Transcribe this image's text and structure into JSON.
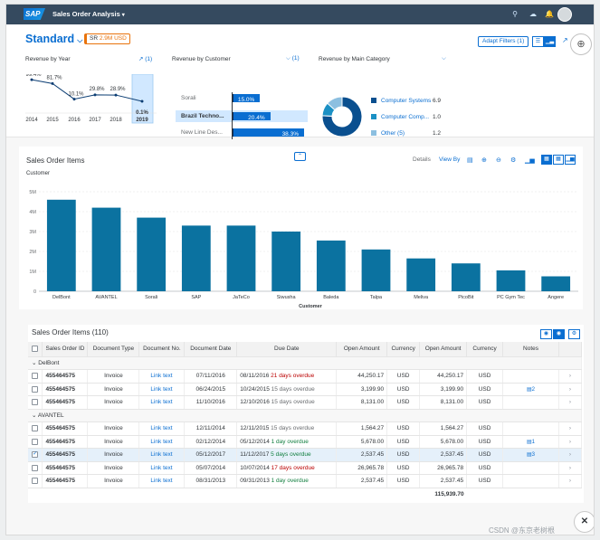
{
  "shell": {
    "logo": "SAP",
    "title": "Sales Order Analysis",
    "caret": "▾",
    "icons": [
      "search-icon",
      "bulb-icon",
      "bell-icon",
      "grid-icon"
    ]
  },
  "header": {
    "variant": "Standard",
    "badge_prefix": "SR",
    "badge_value": "2.9M USD",
    "adapt_filters": "Adapt Filters (1)"
  },
  "revenue_year": {
    "title": "Revenue by Year",
    "count": "(1)",
    "selected_year": "2019",
    "chart_data": {
      "type": "line",
      "categories": [
        "2014",
        "2015",
        "2016",
        "2017",
        "2018",
        "2019"
      ],
      "values": [
        99.4,
        81.7,
        10.1,
        29.8,
        28.9,
        0.1
      ],
      "labels": [
        "99.4%",
        "81.7%",
        "10.1%",
        "29.8%",
        "28.9%",
        "0.1%"
      ]
    }
  },
  "revenue_customer": {
    "title": "Revenue by Customer",
    "count": "(1)",
    "chart_data": {
      "type": "bar",
      "categories": [
        "Sorali",
        "Brazil Techno...",
        "New Line Des..."
      ],
      "values": [
        15.0,
        20.4,
        38.3
      ],
      "labels": [
        "15.0%",
        "20.4%",
        "38.3%"
      ],
      "selected": "Brazil Techno..."
    }
  },
  "revenue_category": {
    "title": "Revenue by Main Category",
    "chart_data": {
      "type": "pie",
      "categories": [
        "Computer Systems",
        "Computer Comp...",
        "Other (5)"
      ],
      "values": [
        6.9,
        1.0,
        1.2
      ],
      "colors": [
        "#0a4f8f",
        "#1b90c4",
        "#8cbfe0"
      ]
    }
  },
  "sales_chart": {
    "title": "Sales Order Items",
    "subtitle": "Customer",
    "details": "Details",
    "view_by": "View By",
    "chart_data": {
      "type": "bar",
      "xlabel": "Customer",
      "ylim": [
        0,
        5
      ],
      "yticks": [
        "0",
        "1M",
        "2M",
        "3M",
        "4M",
        "5M"
      ],
      "categories": [
        "DelBont",
        "AVANTEL",
        "Sorali",
        "SAP",
        "JaTeCo",
        "Siwusha",
        "Baleda",
        "Talpa",
        "Meliva",
        "PicoBit",
        "PC Gym Tec",
        "Angere"
      ],
      "values": [
        4.6,
        4.2,
        3.7,
        3.3,
        3.3,
        3.0,
        2.55,
        2.1,
        1.65,
        1.4,
        1.05,
        0.75
      ]
    }
  },
  "table": {
    "title": "Sales Order Items (110)",
    "columns": [
      "Sales Order ID",
      "Document Type",
      "Document No.",
      "Document Date",
      "Due Date",
      "Open Amount",
      "Currency",
      "Open Amount",
      "Currency",
      "Notes"
    ],
    "groups": [
      {
        "name": "DelBont",
        "rows": [
          {
            "id": "455464575",
            "type": "Invoice",
            "doc": "Link text",
            "date": "07/11/2016",
            "due": "08/11/2016",
            "status": "21 days overdue",
            "tone": "red",
            "amt1": "44,250.17",
            "cur1": "USD",
            "amt2": "44,250.17",
            "cur2": "USD",
            "note": ""
          },
          {
            "id": "455464575",
            "type": "Invoice",
            "doc": "Link text",
            "date": "06/24/2015",
            "due": "10/24/2015",
            "status": "15 days overdue",
            "tone": "gray",
            "amt1": "3,199.90",
            "cur1": "USD",
            "amt2": "3,199.90",
            "cur2": "USD",
            "note": "2"
          },
          {
            "id": "455464575",
            "type": "Invoice",
            "doc": "Link text",
            "date": "11/10/2016",
            "due": "12/10/2016",
            "status": "15 days overdue",
            "tone": "gray",
            "amt1": "8,131.00",
            "cur1": "USD",
            "amt2": "8,131.00",
            "cur2": "USD",
            "note": ""
          }
        ]
      },
      {
        "name": "AVANTEL",
        "rows": [
          {
            "id": "455464575",
            "type": "Invoice",
            "doc": "Link text",
            "date": "12/11/2014",
            "due": "12/11/2015",
            "status": "15 days overdue",
            "tone": "gray",
            "amt1": "1,564.27",
            "cur1": "USD",
            "amt2": "1,564.27",
            "cur2": "USD",
            "note": ""
          },
          {
            "id": "455464575",
            "type": "Invoice",
            "doc": "Link text",
            "date": "02/12/2014",
            "due": "05/12/2014",
            "status": "1 day overdue",
            "tone": "green",
            "amt1": "5,678.00",
            "cur1": "USD",
            "amt2": "5,678.00",
            "cur2": "USD",
            "note": "1"
          },
          {
            "id": "455464575",
            "type": "Invoice",
            "doc": "Link text",
            "date": "05/12/2017",
            "due": "11/12/2017",
            "status": "5 days overdue",
            "tone": "green",
            "amt1": "2,537.45",
            "cur1": "USD",
            "amt2": "2,537.45",
            "cur2": "USD",
            "note": "3",
            "selected": true
          },
          {
            "id": "455464575",
            "type": "Invoice",
            "doc": "Link text",
            "date": "05/07/2014",
            "due": "10/07/2014",
            "status": "17 days overdue",
            "tone": "red",
            "amt1": "26,965.78",
            "cur1": "USD",
            "amt2": "26,965.78",
            "cur2": "USD",
            "note": ""
          },
          {
            "id": "455464575",
            "type": "Invoice",
            "doc": "Link text",
            "date": "08/31/2013",
            "due": "09/31/2013",
            "status": "1 day overdue",
            "tone": "green",
            "amt1": "2,537.45",
            "cur1": "USD",
            "amt2": "2,537.45",
            "cur2": "USD",
            "note": ""
          }
        ]
      }
    ],
    "total": "115,939.70"
  },
  "watermark": "CSDN @东京老树根"
}
